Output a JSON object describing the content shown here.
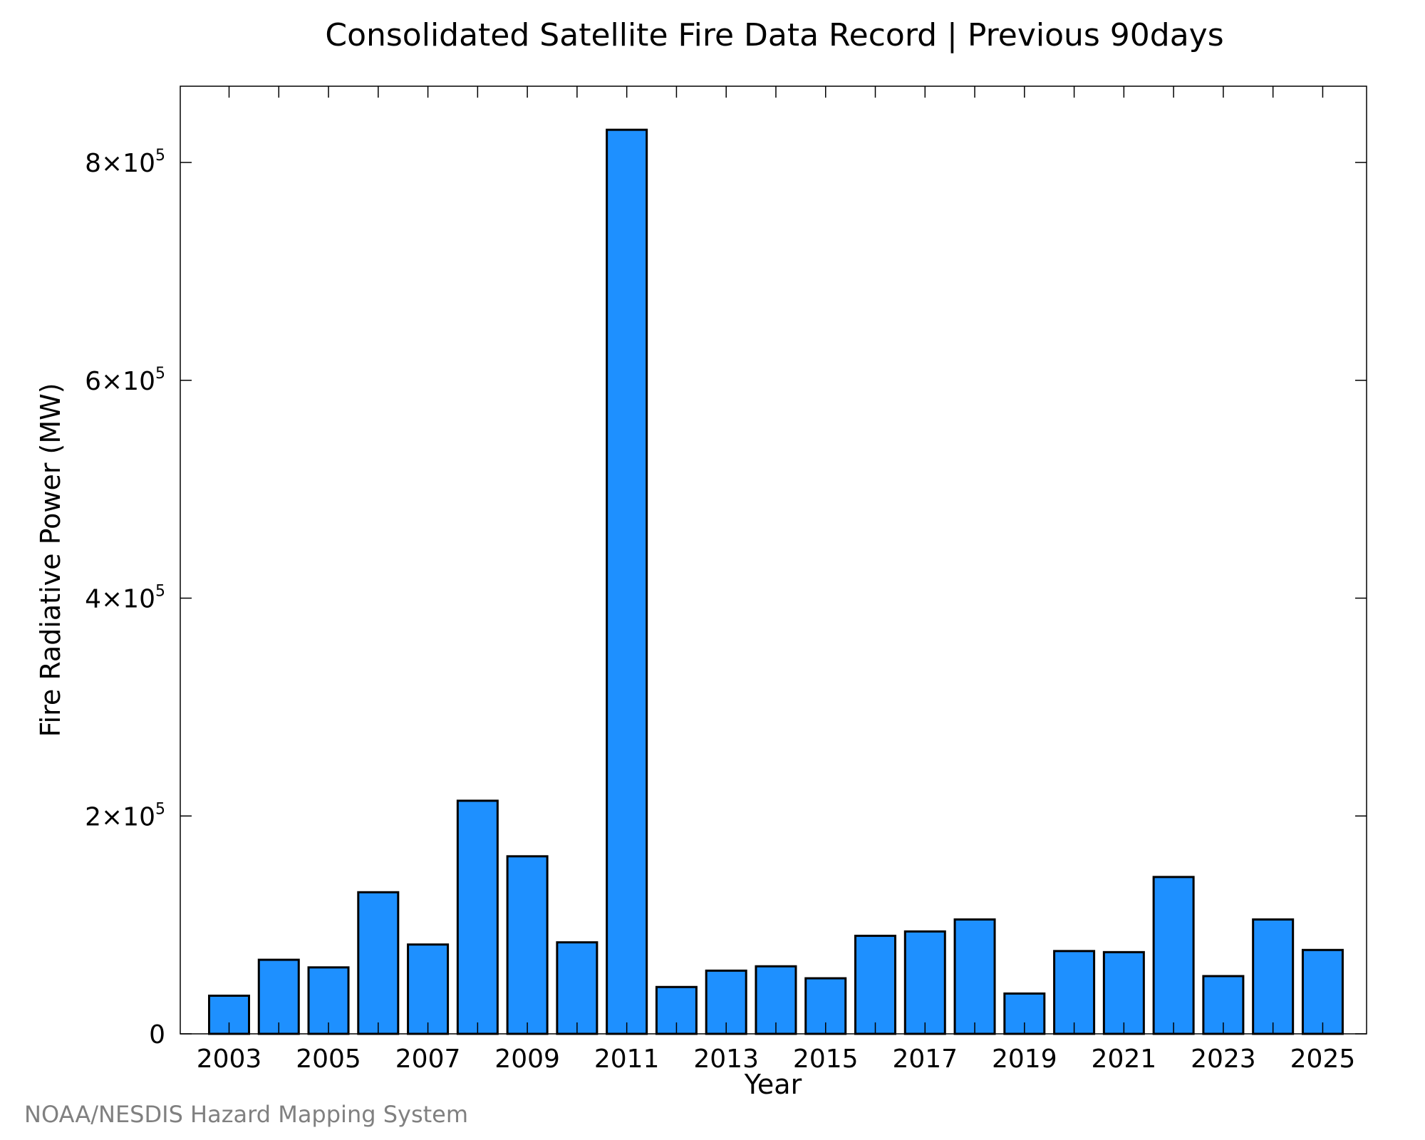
{
  "chart_data": {
    "type": "bar",
    "title": "Consolidated Satellite Fire Data Record | Previous 90days",
    "xlabel": "Year",
    "ylabel": "Fire Radiative Power (MW)",
    "categories": [
      "2003",
      "2004",
      "2005",
      "2006",
      "2007",
      "2008",
      "2009",
      "2010",
      "2011",
      "2012",
      "2013",
      "2014",
      "2015",
      "2016",
      "2017",
      "2018",
      "2019",
      "2020",
      "2021",
      "2022",
      "2023",
      "2024",
      "2025"
    ],
    "values": [
      35000,
      68000,
      61000,
      130000,
      82000,
      214000,
      163000,
      84000,
      830000,
      43000,
      58000,
      62000,
      51000,
      90000,
      94000,
      105000,
      37000,
      76000,
      75000,
      144000,
      53000,
      105000,
      77000
    ],
    "x_tick_labels": [
      "2003",
      "2005",
      "2007",
      "2009",
      "2011",
      "2013",
      "2015",
      "2017",
      "2019",
      "2021",
      "2023",
      "2025"
    ],
    "ylim": [
      0,
      870000
    ],
    "y_ticks": [
      {
        "value": 0,
        "mantissa": "0",
        "exponent": ""
      },
      {
        "value": 200000,
        "mantissa": "2×10",
        "exponent": "5"
      },
      {
        "value": 400000,
        "mantissa": "4×10",
        "exponent": "5"
      },
      {
        "value": 600000,
        "mantissa": "6×10",
        "exponent": "5"
      },
      {
        "value": 800000,
        "mantissa": "8×10",
        "exponent": "5"
      }
    ],
    "bar_color": "#1e90ff",
    "bar_edge_color": "#000000",
    "grid": false,
    "legend": "none"
  },
  "credit": "NOAA/NESDIS Hazard Mapping System",
  "colors": {
    "credit_text": "#808080",
    "axis": "#000000"
  }
}
